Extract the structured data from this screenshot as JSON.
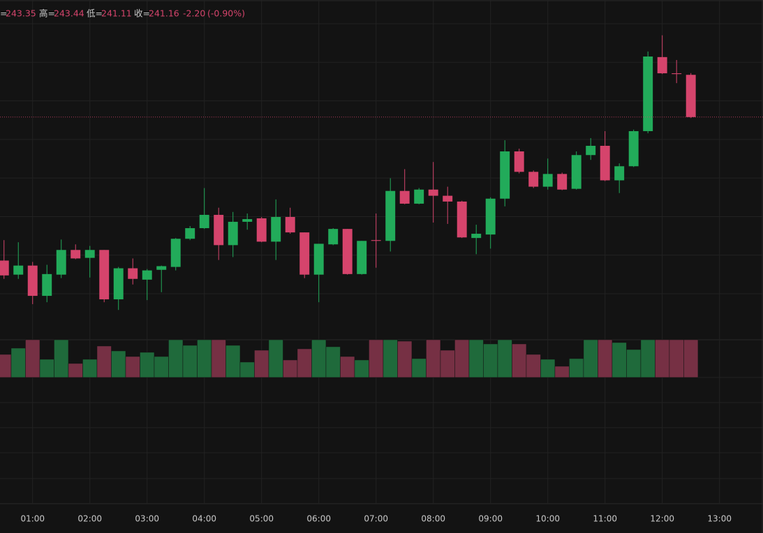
{
  "chart_data": {
    "type": "candlestick",
    "legend": {
      "open_label": "=",
      "high_label": "高=",
      "low_label": "低=",
      "close_label": "收=",
      "change": {
        "value": -2.2,
        "label": "-2.20"
      },
      "change_pct": {
        "value": -0.9,
        "label": "(-0.90%)"
      }
    },
    "x": [
      0.5,
      0.75,
      1,
      1.25,
      1.5,
      1.75,
      2,
      2.25,
      2.5,
      2.75,
      3,
      3.25,
      3.5,
      3.75,
      4,
      4.25,
      4.5,
      4.75,
      5,
      5.25,
      5.5,
      5.75,
      6,
      6.25,
      6.5,
      6.75,
      7,
      7.25,
      7.5,
      7.75,
      8,
      8.25,
      8.5,
      8.75,
      9,
      9.25,
      9.5,
      9.75,
      10,
      10.25,
      10.5,
      10.75,
      11,
      11.25,
      11.5,
      11.75,
      12,
      12.25,
      12.5
    ],
    "open": [
      233.72,
      232.99,
      233.46,
      231.89,
      232.99,
      234.27,
      233.86,
      234.27,
      231.71,
      233.32,
      232.73,
      233.24,
      233.39,
      234.85,
      235.4,
      236.09,
      234.52,
      235.73,
      235.91,
      234.7,
      235.98,
      235.18,
      232.99,
      234.56,
      235.36,
      233.02,
      234.78,
      234.74,
      237.33,
      236.67,
      237.4,
      237.08,
      236.78,
      234.89,
      235.07,
      236.93,
      239.38,
      238.32,
      237.55,
      238.21,
      237.44,
      239.19,
      239.67,
      237.88,
      238.61,
      240.43,
      244.27,
      243.43,
      243.35
    ],
    "high": [
      234.78,
      234.67,
      233.65,
      233.5,
      234.81,
      234.56,
      234.48,
      234.27,
      233.39,
      233.83,
      233.28,
      233.46,
      234.89,
      235.51,
      237.48,
      236.46,
      236.24,
      236.16,
      235.98,
      236.89,
      236.46,
      235.18,
      234.59,
      235.4,
      235.36,
      234.74,
      236.16,
      237.99,
      238.46,
      237.48,
      238.83,
      237.55,
      236.82,
      235.58,
      237.0,
      239.96,
      239.52,
      238.39,
      239.01,
      238.28,
      239.38,
      240.07,
      240.43,
      238.76,
      240.51,
      244.56,
      245.4,
      244.12,
      243.44
    ],
    "low": [
      232.77,
      232.77,
      231.46,
      231.56,
      232.81,
      233.79,
      232.84,
      231.56,
      231.16,
      232.48,
      231.67,
      232.08,
      233.21,
      234.78,
      235.36,
      233.75,
      233.9,
      235.32,
      234.67,
      233.75,
      235.11,
      232.81,
      231.56,
      234.52,
      232.99,
      232.99,
      233.35,
      234.19,
      236.64,
      236.64,
      235.69,
      235.62,
      234.89,
      234.05,
      234.34,
      236.53,
      238.24,
      237.48,
      237.4,
      237.37,
      237.4,
      238.94,
      237.84,
      237.22,
      238.57,
      240.32,
      243.39,
      242.92,
      241.11
    ],
    "close": [
      232.95,
      233.46,
      231.89,
      233.02,
      234.27,
      233.83,
      234.27,
      231.71,
      233.32,
      232.77,
      233.21,
      233.43,
      234.85,
      235.4,
      236.09,
      234.52,
      235.73,
      235.87,
      234.7,
      235.98,
      235.18,
      232.99,
      234.59,
      235.36,
      233.02,
      234.74,
      234.74,
      237.33,
      236.67,
      237.4,
      237.08,
      236.78,
      234.92,
      235.11,
      236.93,
      239.38,
      238.32,
      237.55,
      238.21,
      237.4,
      239.19,
      239.67,
      237.88,
      238.61,
      240.43,
      244.3,
      243.43,
      243.39,
      241.16
    ],
    "volume": [
      33,
      42,
      54,
      26,
      54,
      20,
      26,
      45,
      38,
      30,
      36,
      30,
      54,
      46,
      54,
      54,
      46,
      22,
      39,
      54,
      25,
      41,
      54,
      44,
      30,
      25,
      54,
      54,
      52,
      27,
      54,
      39,
      54,
      54,
      48,
      54,
      48,
      33,
      26,
      16,
      27,
      54,
      54,
      50,
      40,
      54,
      54,
      54,
      54
    ],
    "up_color": "#22ab5a",
    "down_color": "#d5446c",
    "up_volume_color": "#1f6a3b",
    "down_volume_color": "#763044",
    "xlim": [
      0.43,
      13.76
    ],
    "xticks": [
      {
        "value": 1,
        "label": "01:00"
      },
      {
        "value": 2,
        "label": "02:00"
      },
      {
        "value": 3,
        "label": "03:00"
      },
      {
        "value": 4,
        "label": "04:00"
      },
      {
        "value": 5,
        "label": "05:00"
      },
      {
        "value": 6,
        "label": "06:00"
      },
      {
        "value": 7,
        "label": "07:00"
      },
      {
        "value": 8,
        "label": "08:00"
      },
      {
        "value": 9,
        "label": "09:00"
      },
      {
        "value": 10,
        "label": "10:00"
      },
      {
        "value": 11,
        "label": "11:00"
      },
      {
        "value": 12,
        "label": "12:00"
      },
      {
        "value": 13,
        "label": "13:00"
      }
    ],
    "ylim": [
      229.65,
      247.23
    ],
    "yticks": [
      232,
      234,
      236,
      238,
      240,
      242,
      244,
      246
    ],
    "grid": true
  }
}
